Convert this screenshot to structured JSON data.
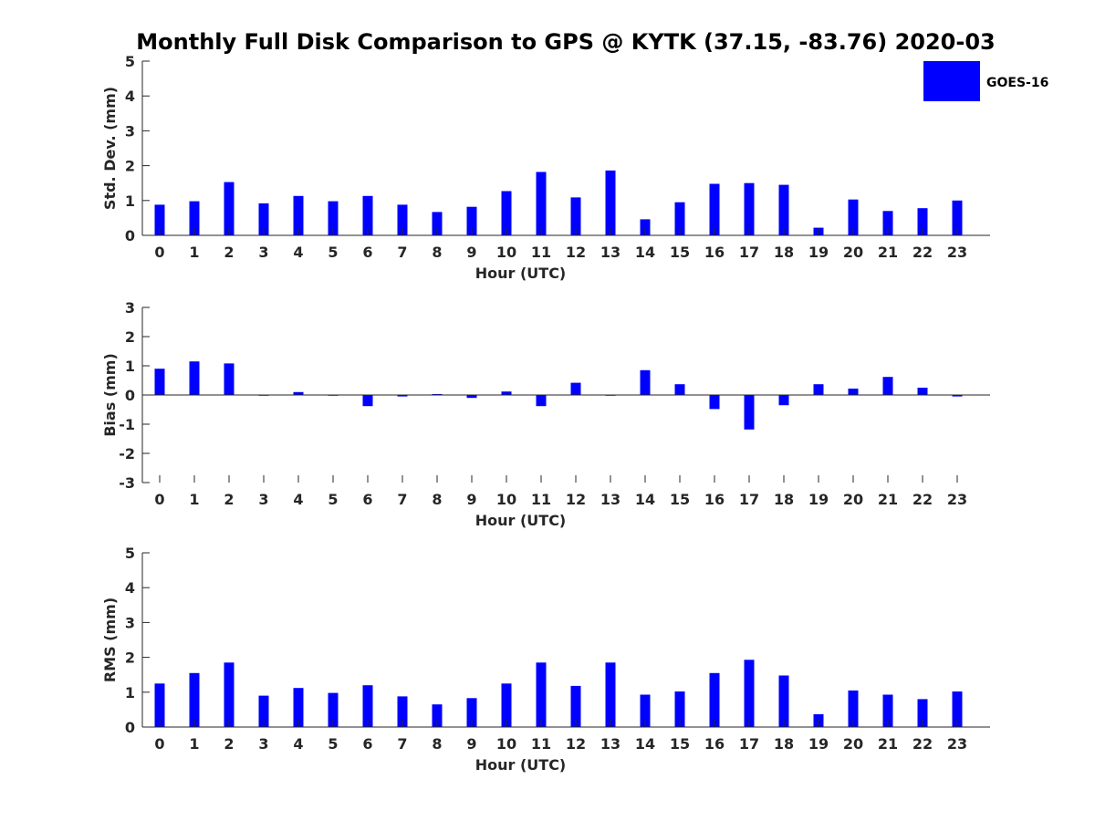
{
  "figure": {
    "title": "Monthly Full Disk Comparison to GPS @ KYTK (37.15, -83.76) 2020-03",
    "legend": {
      "label": "GOES-16",
      "placement": "top-right",
      "color": "#0000ff"
    }
  },
  "chart_data": [
    {
      "type": "bar",
      "name": "std-dev",
      "xlabel": "Hour (UTC)",
      "ylabel": "Std. Dev. (mm)",
      "ylim": [
        0,
        5
      ],
      "yticks": [
        0,
        1,
        2,
        3,
        4,
        5
      ],
      "categories": [
        "0",
        "1",
        "2",
        "3",
        "4",
        "5",
        "6",
        "7",
        "8",
        "9",
        "10",
        "11",
        "12",
        "13",
        "14",
        "15",
        "16",
        "17",
        "18",
        "19",
        "20",
        "21",
        "22",
        "23"
      ],
      "series": [
        {
          "name": "GOES-16",
          "color": "#0000ff",
          "values": [
            0.88,
            0.98,
            1.53,
            0.92,
            1.13,
            0.98,
            1.13,
            0.88,
            0.67,
            0.82,
            1.27,
            1.82,
            1.09,
            1.86,
            0.46,
            0.95,
            1.48,
            1.5,
            1.45,
            0.22,
            1.03,
            0.7,
            0.78,
            1.0
          ]
        }
      ]
    },
    {
      "type": "bar",
      "name": "bias",
      "xlabel": "Hour (UTC)",
      "ylabel": "Bias (mm)",
      "ylim": [
        -3,
        3
      ],
      "yticks": [
        -3,
        -2,
        -1,
        0,
        1,
        2,
        3
      ],
      "categories": [
        "0",
        "1",
        "2",
        "3",
        "4",
        "5",
        "6",
        "7",
        "8",
        "9",
        "10",
        "11",
        "12",
        "13",
        "14",
        "15",
        "16",
        "17",
        "18",
        "19",
        "20",
        "21",
        "22",
        "23"
      ],
      "series": [
        {
          "name": "GOES-16",
          "color": "#0000ff",
          "values": [
            0.9,
            1.15,
            1.08,
            -0.02,
            0.1,
            -0.02,
            -0.38,
            -0.05,
            0.03,
            -0.1,
            0.12,
            -0.38,
            0.42,
            -0.02,
            0.85,
            0.37,
            -0.48,
            -1.18,
            -0.35,
            0.37,
            0.22,
            0.62,
            0.25,
            -0.05
          ]
        }
      ]
    },
    {
      "type": "bar",
      "name": "rms",
      "xlabel": "Hour (UTC)",
      "ylabel": "RMS (mm)",
      "ylim": [
        0,
        5
      ],
      "yticks": [
        0,
        1,
        2,
        3,
        4,
        5
      ],
      "categories": [
        "0",
        "1",
        "2",
        "3",
        "4",
        "5",
        "6",
        "7",
        "8",
        "9",
        "10",
        "11",
        "12",
        "13",
        "14",
        "15",
        "16",
        "17",
        "18",
        "19",
        "20",
        "21",
        "22",
        "23"
      ],
      "series": [
        {
          "name": "GOES-16",
          "color": "#0000ff",
          "values": [
            1.25,
            1.55,
            1.85,
            0.9,
            1.12,
            0.98,
            1.2,
            0.88,
            0.65,
            0.83,
            1.25,
            1.85,
            1.18,
            1.85,
            0.93,
            1.02,
            1.55,
            1.93,
            1.48,
            0.37,
            1.05,
            0.93,
            0.8,
            1.02
          ]
        }
      ]
    }
  ]
}
